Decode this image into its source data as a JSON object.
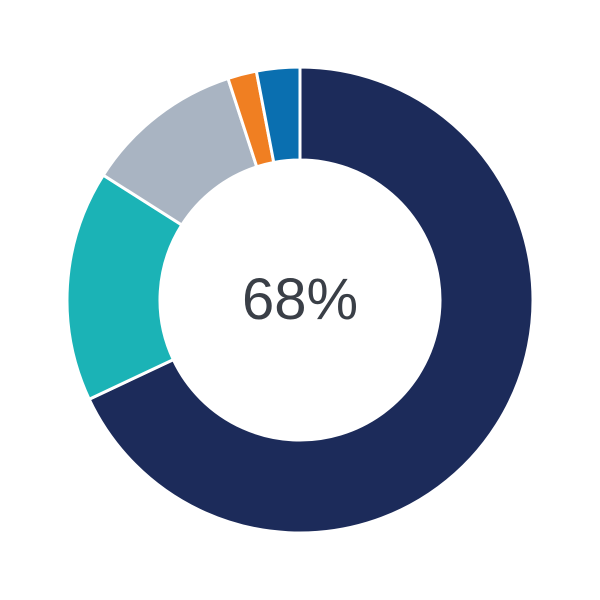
{
  "chart_data": {
    "type": "pie",
    "variant": "donut",
    "center_label": "68%",
    "start": "top",
    "direction": "clockwise",
    "slices": [
      {
        "value": 68,
        "color": "#1c2b5a"
      },
      {
        "value": 16,
        "color": "#1bb3b6"
      },
      {
        "value": 11,
        "color": "#a9b4c2"
      },
      {
        "value": 2,
        "color": "#f07f22"
      },
      {
        "value": 3,
        "color": "#0a6fb0"
      }
    ]
  }
}
